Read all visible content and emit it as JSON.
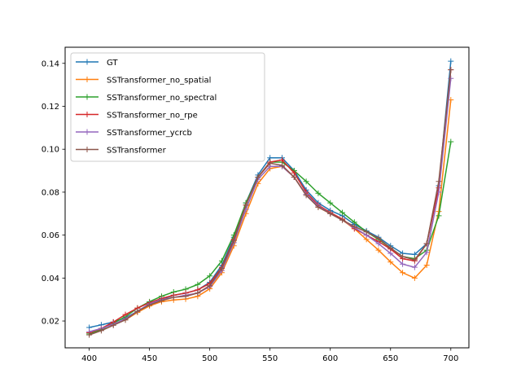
{
  "chart_data": {
    "type": "line",
    "title": "",
    "xlabel": "",
    "ylabel": "",
    "xlim": [
      380,
      715
    ],
    "ylim": [
      0.0075,
      0.1475
    ],
    "xticks": [
      400,
      450,
      500,
      550,
      600,
      650,
      700
    ],
    "yticks": [
      0.02,
      0.04,
      0.06,
      0.08,
      0.1,
      0.12,
      0.14
    ],
    "ytick_labels": [
      "0.02",
      "0.04",
      "0.06",
      "0.08",
      "0.10",
      "0.12",
      "0.14"
    ],
    "grid": false,
    "legend_position": "upper-left",
    "x": [
      400,
      410,
      420,
      430,
      440,
      450,
      460,
      470,
      480,
      490,
      500,
      510,
      520,
      530,
      540,
      550,
      560,
      570,
      580,
      590,
      600,
      610,
      620,
      630,
      640,
      650,
      660,
      670,
      680,
      690,
      700
    ],
    "series": [
      {
        "name": "GT",
        "color": "#1f77b4",
        "values": [
          0.017,
          0.0182,
          0.0195,
          0.0215,
          0.0245,
          0.028,
          0.03,
          0.032,
          0.033,
          0.0345,
          0.038,
          0.046,
          0.059,
          0.075,
          0.088,
          0.096,
          0.096,
          0.09,
          0.081,
          0.075,
          0.0715,
          0.069,
          0.065,
          0.062,
          0.059,
          0.055,
          0.0515,
          0.051,
          0.056,
          0.083,
          0.141
        ]
      },
      {
        "name": "SSTransformer_no_spatial",
        "color": "#ff7f0e",
        "values": [
          0.0145,
          0.0165,
          0.0185,
          0.0205,
          0.024,
          0.027,
          0.029,
          0.0298,
          0.0302,
          0.0315,
          0.035,
          0.0425,
          0.055,
          0.07,
          0.084,
          0.091,
          0.092,
          0.087,
          0.079,
          0.073,
          0.07,
          0.067,
          0.063,
          0.058,
          0.053,
          0.0475,
          0.0425,
          0.04,
          0.046,
          0.071,
          0.123
        ]
      },
      {
        "name": "SSTransformer_no_spectral",
        "color": "#2ca02c",
        "values": [
          0.014,
          0.016,
          0.019,
          0.022,
          0.026,
          0.029,
          0.0315,
          0.0335,
          0.0348,
          0.037,
          0.041,
          0.048,
          0.06,
          0.075,
          0.087,
          0.094,
          0.094,
          0.09,
          0.085,
          0.0795,
          0.075,
          0.0705,
          0.066,
          0.0615,
          0.058,
          0.054,
          0.05,
          0.049,
          0.053,
          0.069,
          0.1035
        ]
      },
      {
        "name": "SSTransformer_no_rpe",
        "color": "#d62728",
        "values": [
          0.0145,
          0.0165,
          0.0195,
          0.023,
          0.026,
          0.0285,
          0.0305,
          0.032,
          0.033,
          0.0345,
          0.0375,
          0.045,
          0.058,
          0.074,
          0.087,
          0.094,
          0.095,
          0.089,
          0.08,
          0.074,
          0.0705,
          0.0675,
          0.063,
          0.06,
          0.057,
          0.0535,
          0.049,
          0.048,
          0.056,
          0.082,
          0.137
        ]
      },
      {
        "name": "SSTransformer_ycrcb",
        "color": "#9467bd",
        "values": [
          0.015,
          0.0165,
          0.0185,
          0.021,
          0.0245,
          0.028,
          0.03,
          0.031,
          0.032,
          0.033,
          0.036,
          0.0435,
          0.0565,
          0.072,
          0.086,
          0.092,
          0.092,
          0.087,
          0.079,
          0.0735,
          0.07,
          0.067,
          0.0635,
          0.06,
          0.056,
          0.0515,
          0.0465,
          0.045,
          0.052,
          0.08,
          0.133
        ]
      },
      {
        "name": "SSTransformer",
        "color": "#8c564b",
        "values": [
          0.0135,
          0.0155,
          0.018,
          0.0205,
          0.0245,
          0.0275,
          0.0295,
          0.031,
          0.0315,
          0.033,
          0.0365,
          0.0445,
          0.0575,
          0.074,
          0.087,
          0.0935,
          0.0925,
          0.087,
          0.0785,
          0.073,
          0.07,
          0.067,
          0.064,
          0.0615,
          0.0585,
          0.054,
          0.05,
          0.0485,
          0.056,
          0.085,
          0.137
        ]
      }
    ]
  }
}
